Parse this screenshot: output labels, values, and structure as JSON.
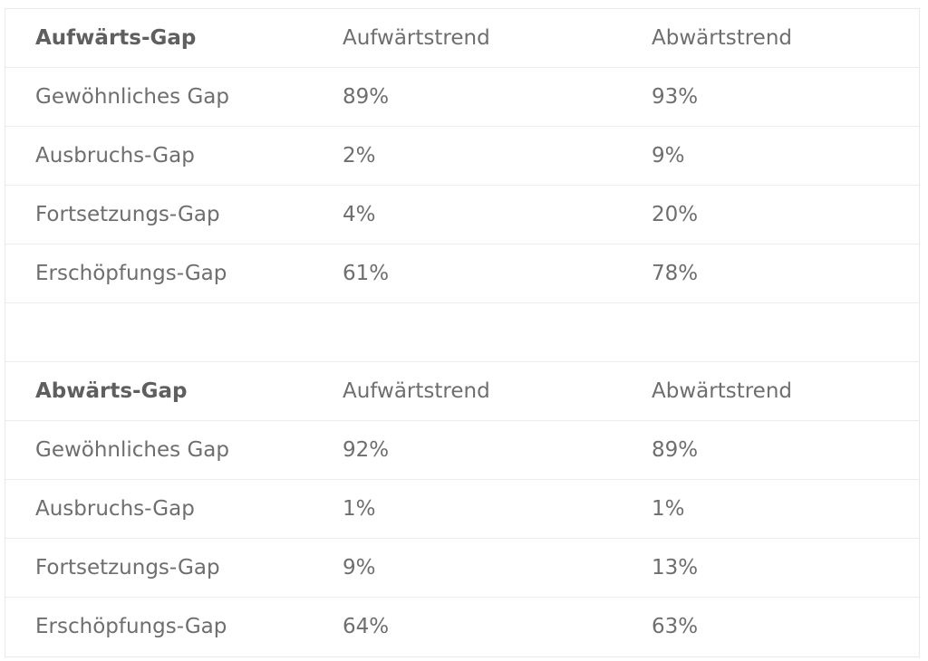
{
  "tables": [
    {
      "header": [
        "Aufwärts-Gap",
        "Aufwärtstrend",
        "Abwärtstrend"
      ],
      "rows": [
        [
          "Gewöhnliches Gap",
          "89%",
          "93%"
        ],
        [
          "Ausbruchs-Gap",
          "2%",
          "9%"
        ],
        [
          "Fortsetzungs-Gap",
          "4%",
          "20%"
        ],
        [
          "Erschöpfungs-Gap",
          "61%",
          "78%"
        ]
      ]
    },
    {
      "header": [
        "Abwärts-Gap",
        "Aufwärtstrend",
        "Abwärtstrend"
      ],
      "rows": [
        [
          "Gewöhnliches Gap",
          "92%",
          "89%"
        ],
        [
          "Ausbruchs-Gap",
          "1%",
          "1%"
        ],
        [
          "Fortsetzungs-Gap",
          "9%",
          "13%"
        ],
        [
          "Erschöpfungs-Gap",
          "64%",
          "63%"
        ]
      ]
    }
  ]
}
